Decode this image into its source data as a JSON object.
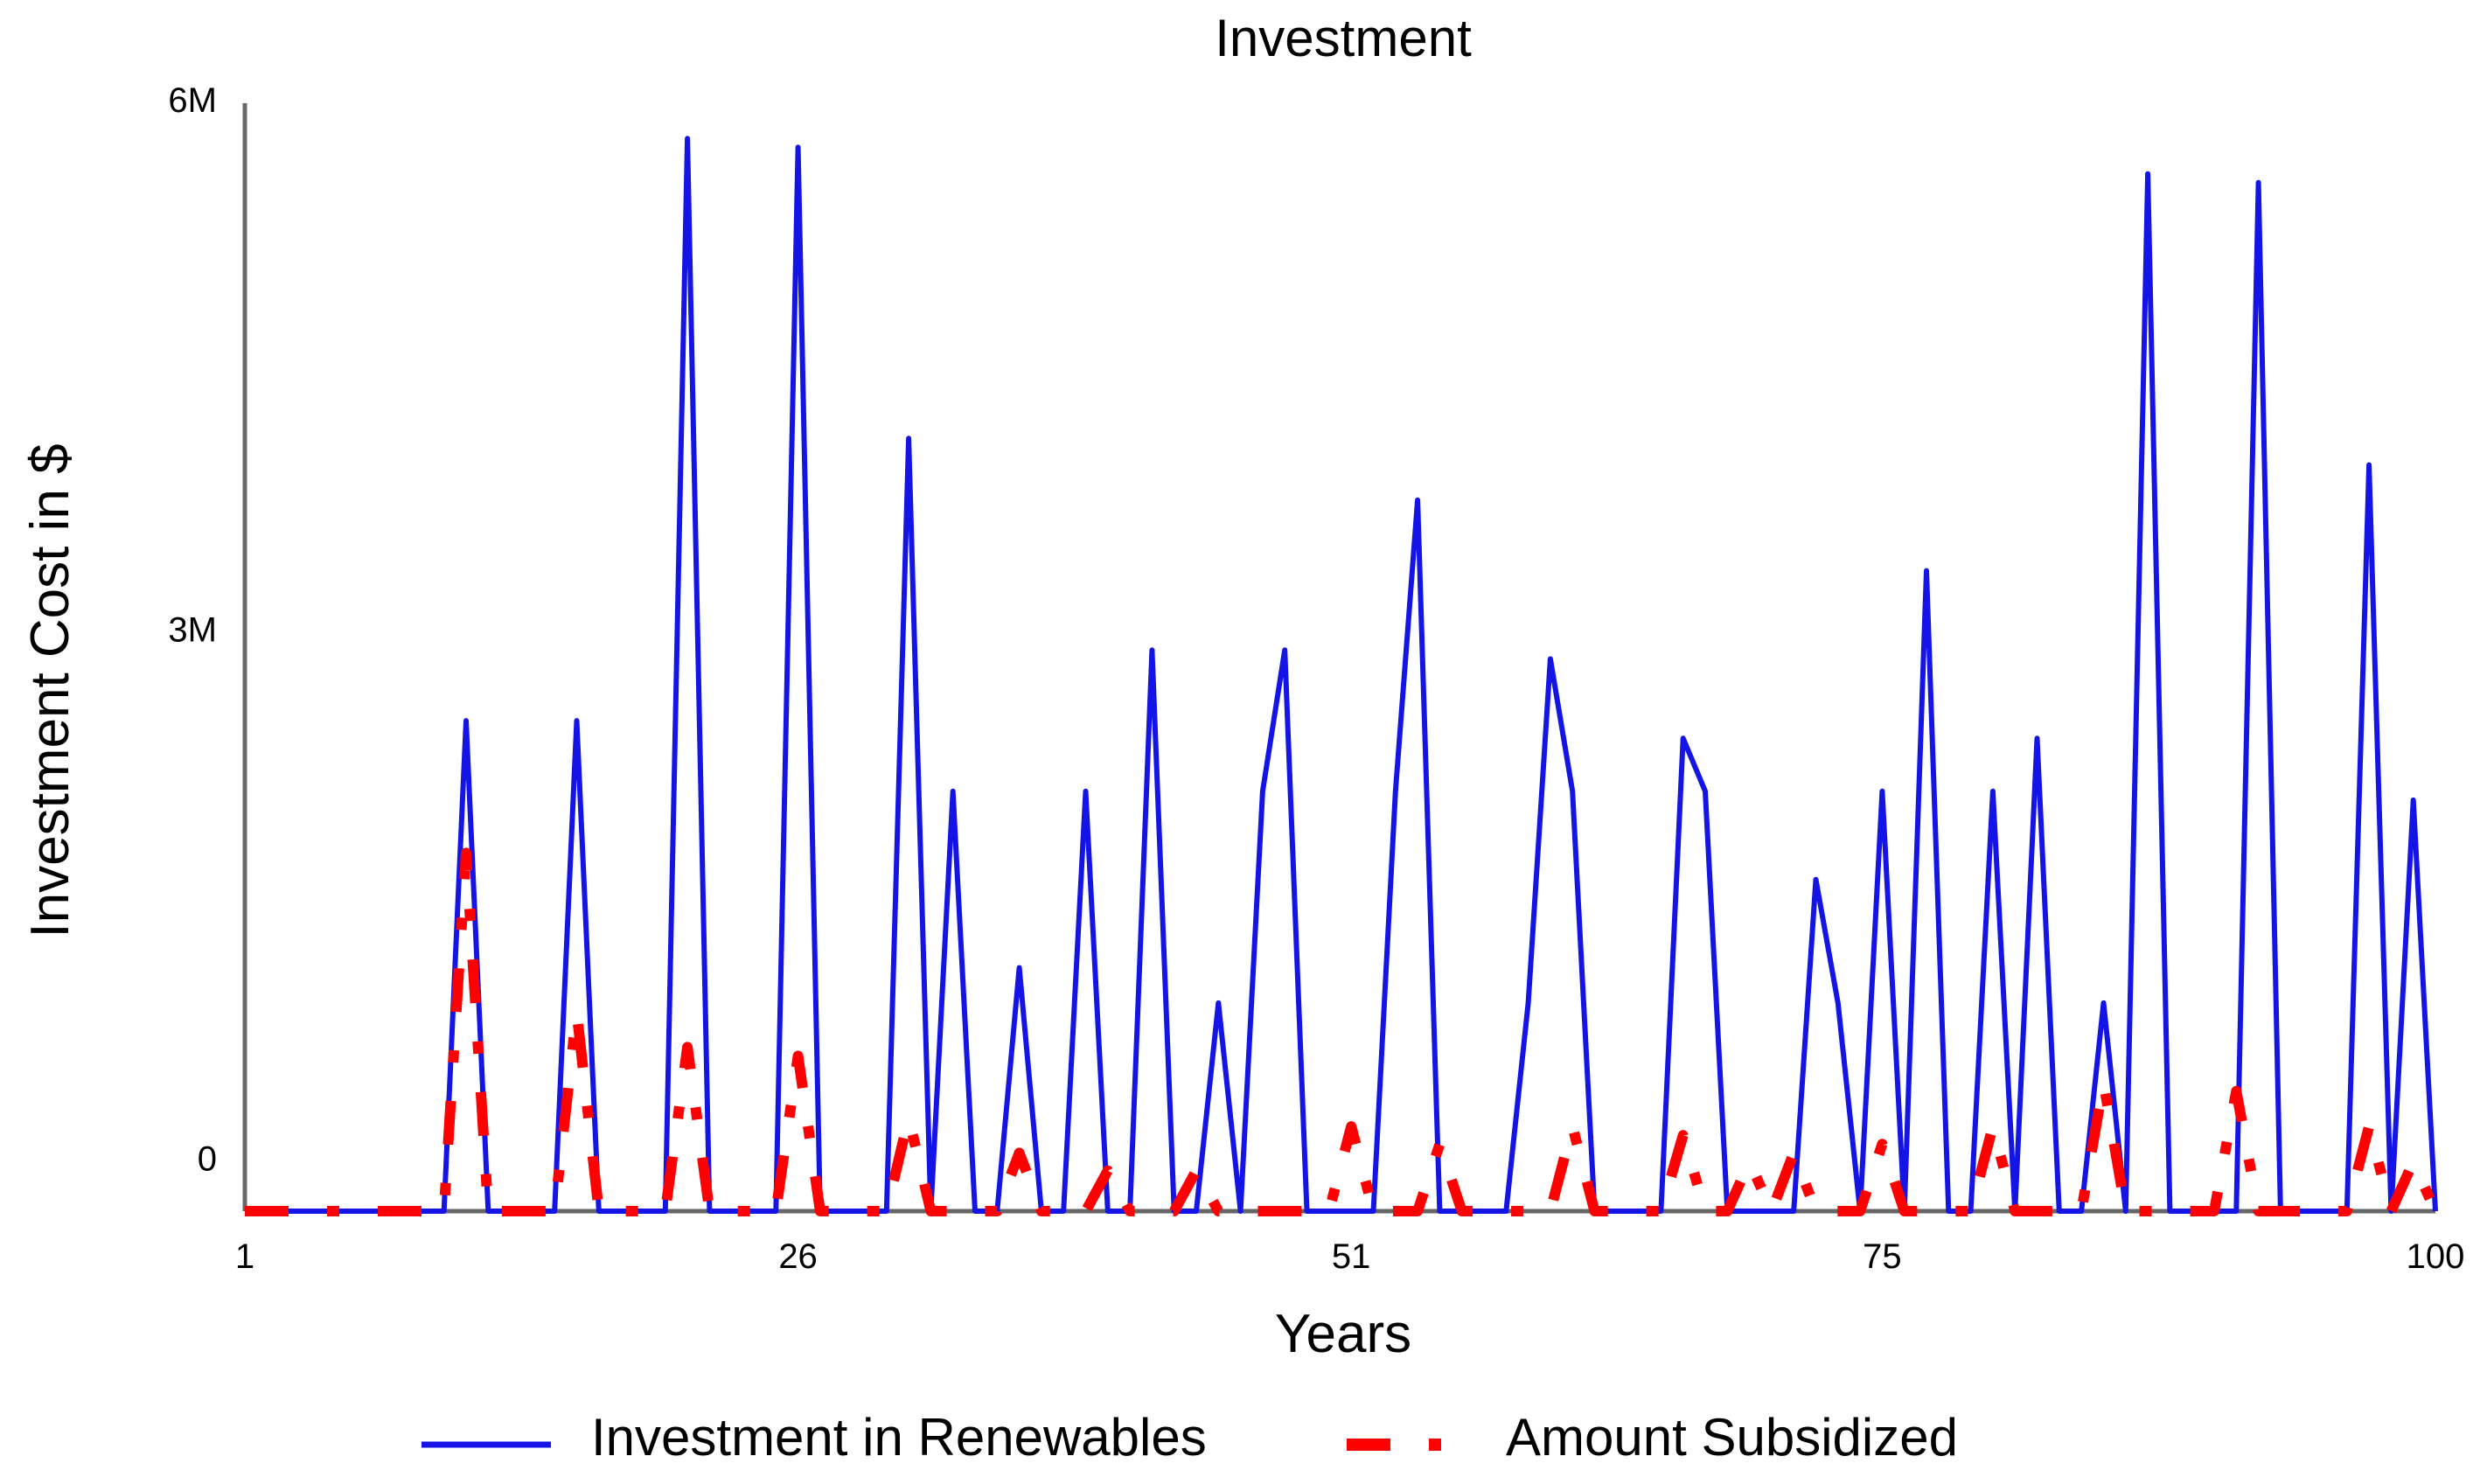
{
  "chart_data": {
    "type": "line",
    "title": "Investment",
    "xlabel": "Years",
    "ylabel": "Investment Cost in $",
    "xlim": [
      1,
      100
    ],
    "ylim": [
      -0.18,
      6.1
    ],
    "x_ticks": [
      {
        "value": 1,
        "label": "1"
      },
      {
        "value": 26,
        "label": "26"
      },
      {
        "value": 51,
        "label": "51"
      },
      {
        "value": 75,
        "label": "75"
      },
      {
        "value": 100,
        "label": "100"
      }
    ],
    "y_ticks": [
      {
        "value": 0,
        "label": "0"
      },
      {
        "value": 3,
        "label": "3M"
      },
      {
        "value": 6,
        "label": "6M"
      }
    ],
    "y_unit": "millions of $",
    "grid": false,
    "legend_position": "bottom",
    "x": [
      1,
      2,
      3,
      4,
      5,
      6,
      7,
      8,
      9,
      10,
      11,
      12,
      13,
      14,
      15,
      16,
      17,
      18,
      19,
      20,
      21,
      22,
      23,
      24,
      25,
      26,
      27,
      28,
      29,
      30,
      31,
      32,
      33,
      34,
      35,
      36,
      37,
      38,
      39,
      40,
      41,
      42,
      43,
      44,
      45,
      46,
      47,
      48,
      49,
      50,
      51,
      52,
      53,
      54,
      55,
      56,
      57,
      58,
      59,
      60,
      61,
      62,
      63,
      64,
      65,
      66,
      67,
      68,
      69,
      70,
      71,
      72,
      73,
      74,
      75,
      76,
      77,
      78,
      79,
      80,
      81,
      82,
      83,
      84,
      85,
      86,
      87,
      88,
      89,
      90,
      91,
      92,
      93,
      94,
      95,
      96,
      97,
      98,
      99,
      100
    ],
    "series": [
      {
        "name": "Investment in Renewables",
        "color": "#1414e6",
        "style": "solid",
        "values": [
          -0.18,
          -0.18,
          -0.18,
          -0.18,
          -0.18,
          -0.18,
          -0.18,
          -0.18,
          -0.18,
          -0.18,
          2.6,
          -0.18,
          -0.18,
          -0.18,
          -0.18,
          2.6,
          -0.18,
          -0.18,
          -0.18,
          -0.18,
          5.9,
          -0.18,
          -0.18,
          -0.18,
          -0.18,
          5.85,
          -0.18,
          -0.18,
          -0.18,
          -0.18,
          4.2,
          -0.18,
          2.2,
          -0.18,
          -0.18,
          1.2,
          -0.18,
          -0.18,
          2.2,
          -0.18,
          -0.18,
          3.0,
          -0.18,
          -0.18,
          1.0,
          -0.18,
          2.2,
          3.0,
          -0.18,
          -0.18,
          -0.18,
          -0.18,
          2.2,
          3.85,
          -0.18,
          -0.18,
          -0.18,
          -0.18,
          1.0,
          2.95,
          2.2,
          -0.18,
          -0.18,
          -0.18,
          -0.18,
          2.5,
          2.2,
          -0.18,
          -0.18,
          -0.18,
          -0.18,
          1.7,
          1.0,
          -0.18,
          2.2,
          -0.18,
          3.45,
          -0.18,
          -0.18,
          2.2,
          -0.18,
          2.5,
          -0.18,
          -0.18,
          1.0,
          -0.18,
          5.7,
          -0.18,
          -0.18,
          -0.18,
          -0.18,
          5.65,
          -0.18,
          -0.18,
          -0.18,
          -0.18,
          4.05,
          -0.18,
          2.15,
          -0.18
        ]
      },
      {
        "name": "Amount Subsidized",
        "color": "#ff0000",
        "style": "dash-dot",
        "values": [
          -0.18,
          -0.18,
          -0.18,
          -0.18,
          -0.18,
          -0.18,
          -0.18,
          -0.18,
          -0.18,
          -0.18,
          1.85,
          -0.18,
          -0.18,
          -0.18,
          -0.18,
          0.95,
          -0.18,
          -0.18,
          -0.18,
          -0.18,
          0.75,
          -0.18,
          -0.18,
          -0.18,
          -0.18,
          0.7,
          -0.18,
          -0.18,
          -0.18,
          -0.18,
          0.35,
          -0.18,
          -0.18,
          -0.18,
          -0.18,
          0.15,
          -0.18,
          -0.18,
          -0.18,
          0.05,
          -0.18,
          -0.18,
          -0.18,
          0.05,
          -0.18,
          -0.18,
          -0.18,
          -0.18,
          -0.18,
          -0.18,
          0.3,
          -0.18,
          -0.18,
          -0.18,
          0.2,
          -0.18,
          -0.18,
          -0.18,
          -0.18,
          -0.18,
          0.3,
          -0.18,
          -0.18,
          -0.18,
          -0.18,
          0.25,
          -0.18,
          -0.18,
          0.1,
          -0.18,
          0.15,
          -0.18,
          -0.18,
          -0.18,
          0.2,
          -0.18,
          -0.18,
          -0.18,
          -0.18,
          0.3,
          -0.18,
          -0.18,
          -0.18,
          -0.18,
          0.55,
          -0.18,
          -0.18,
          -0.18,
          -0.18,
          -0.18,
          0.5,
          -0.18,
          -0.18,
          -0.18,
          -0.18,
          -0.18,
          0.3,
          -0.18,
          0.1,
          -0.18
        ]
      }
    ]
  }
}
